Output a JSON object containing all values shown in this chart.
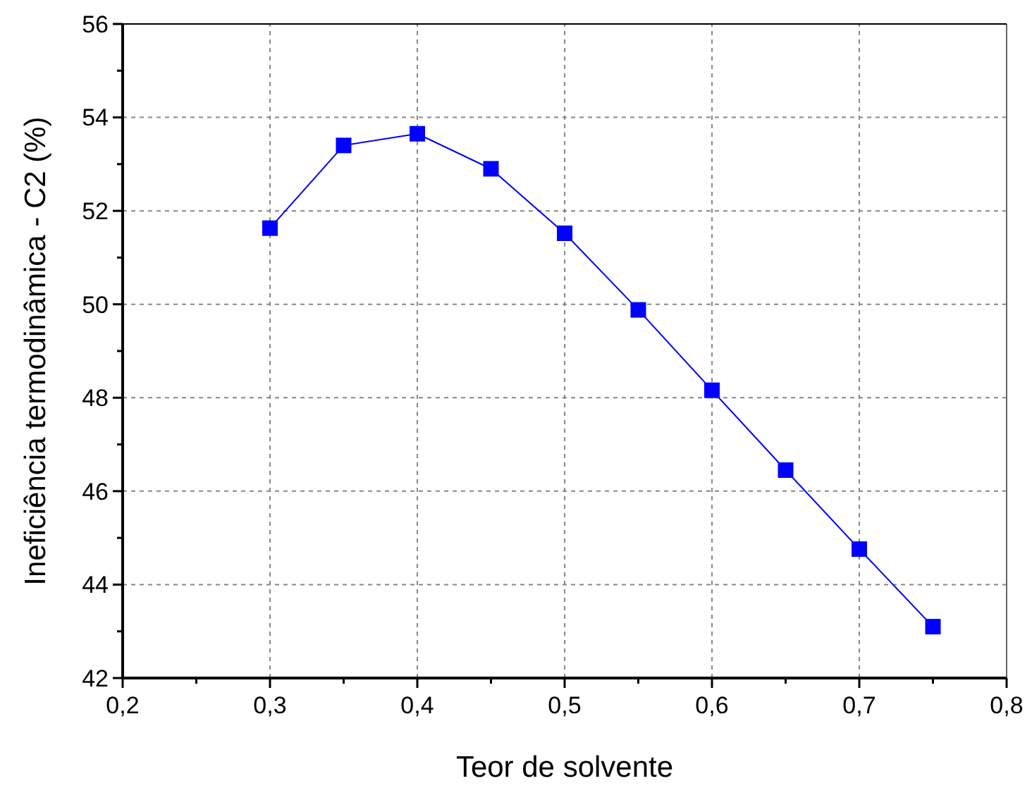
{
  "chart_data": {
    "type": "line",
    "xlabel": "Teor de solvente",
    "ylabel": "Ineficiência termodinâmica - C2 (%)",
    "x": [
      0.3,
      0.35,
      0.4,
      0.45,
      0.5,
      0.55,
      0.6,
      0.65,
      0.7,
      0.75
    ],
    "series": [
      {
        "color": "#0000ff",
        "values": [
          51.63,
          53.4,
          53.65,
          52.9,
          51.52,
          49.88,
          48.16,
          46.45,
          44.76,
          43.1
        ]
      }
    ],
    "xlim": [
      0.2,
      0.8
    ],
    "xticks": [
      {
        "value": 0.2,
        "label": "0,2"
      },
      {
        "value": 0.25,
        "label": null
      },
      {
        "value": 0.3,
        "label": "0,3"
      },
      {
        "value": 0.35,
        "label": null
      },
      {
        "value": 0.4,
        "label": "0,4"
      },
      {
        "value": 0.45,
        "label": null
      },
      {
        "value": 0.5,
        "label": "0,5"
      },
      {
        "value": 0.55,
        "label": null
      },
      {
        "value": 0.6,
        "label": "0,6"
      },
      {
        "value": 0.65,
        "label": null
      },
      {
        "value": 0.7,
        "label": "0,7"
      },
      {
        "value": 0.75,
        "label": null
      },
      {
        "value": 0.8,
        "label": "0,8"
      }
    ],
    "ylim": [
      42,
      56
    ],
    "yticks": [
      42,
      {
        "value": 43,
        "label": null
      },
      44,
      {
        "value": 45,
        "label": null
      },
      46,
      {
        "value": 47,
        "label": null
      },
      48,
      {
        "value": 49,
        "label": null
      },
      50,
      {
        "value": 51,
        "label": null
      },
      52,
      {
        "value": 53,
        "label": null
      },
      54,
      {
        "value": 55,
        "label": null
      },
      56
    ],
    "grid": true,
    "marker": "square",
    "line_style": "solid"
  }
}
